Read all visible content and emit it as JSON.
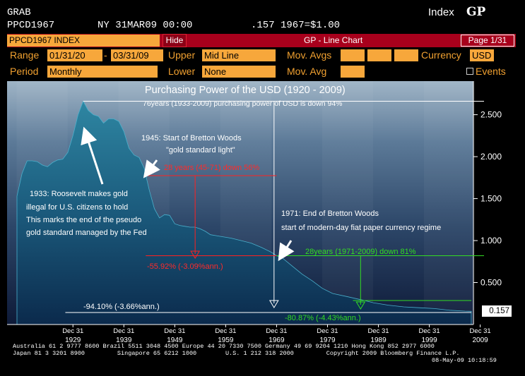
{
  "header": {
    "left1": "GRAB",
    "left2": "PPCD1967",
    "date": "NY 31MAR09 00:00",
    "value": ".157 1967=$1.00",
    "index_label": "Index",
    "index_code": "GP"
  },
  "toolbar": {
    "ticker": "PPCD1967 INDEX",
    "hide_label": "Hide",
    "title": "GP - Line Chart",
    "page": "Page 1/31"
  },
  "params": {
    "range_label": "Range",
    "range_from": "01/31/20",
    "range_sep": "-",
    "range_to": "03/31/09",
    "upper_label": "Upper",
    "upper_value": "Mid Line",
    "mov_avgs_label": "Mov. Avgs",
    "currency_label": "Currency",
    "currency_value": "USD",
    "period_label": "Period",
    "period_value": "Monthly",
    "lower_label": "Lower",
    "lower_value": "None",
    "mov_avg_label": "Mov. Avg",
    "events_label": "Events"
  },
  "chart_data": {
    "type": "area",
    "title": "Purchasing Power of the USD (1920 - 2009)",
    "subtitle": "76years (1933-2009) purchasing power of USD is down 94%",
    "last_value": "0.157",
    "y_ticks": [
      "2.500",
      "2.000",
      "1.500",
      "1.000",
      "0.500"
    ],
    "x_ticks_top": [
      "Dec 31",
      "Dec 31",
      "Dec 31",
      "Dec 31",
      "Dec 31",
      "Dec 31",
      "Dec 31",
      "Dec 31",
      "Dec 31"
    ],
    "x_ticks_bottom": [
      "1929",
      "1939",
      "1949",
      "1959",
      "1969",
      "1979",
      "1989",
      "1999",
      "2009"
    ],
    "ylim": [
      0,
      2.9
    ],
    "xlim": [
      1920.0,
      2009.25
    ],
    "x": [
      1920.0,
      1921,
      1922,
      1923,
      1924,
      1925,
      1926,
      1927,
      1928,
      1929,
      1930,
      1931,
      1932,
      1933,
      1934,
      1935,
      1936,
      1937,
      1938,
      1939,
      1940,
      1941,
      1942,
      1943,
      1944,
      1945,
      1946,
      1947,
      1948,
      1949,
      1950,
      1951,
      1952,
      1953,
      1954,
      1955,
      1956,
      1957,
      1958,
      1959,
      1960,
      1962,
      1964,
      1966,
      1968,
      1970,
      1971,
      1972,
      1974,
      1976,
      1978,
      1980,
      1982,
      1985,
      1988,
      1990,
      1993,
      1996,
      1999,
      2002,
      2005,
      2008,
      2009.25
    ],
    "y": [
      1.53,
      1.8,
      1.95,
      1.95,
      1.94,
      1.9,
      1.88,
      1.93,
      1.96,
      1.97,
      2.05,
      2.25,
      2.5,
      2.66,
      2.55,
      2.5,
      2.48,
      2.4,
      2.45,
      2.45,
      2.42,
      2.3,
      2.1,
      2.02,
      1.99,
      1.86,
      1.6,
      1.38,
      1.27,
      1.31,
      1.3,
      1.2,
      1.18,
      1.17,
      1.16,
      1.16,
      1.14,
      1.11,
      1.07,
      1.06,
      1.05,
      1.03,
      1.0,
      0.97,
      0.92,
      0.86,
      0.82,
      0.8,
      0.7,
      0.6,
      0.52,
      0.43,
      0.37,
      0.33,
      0.29,
      0.26,
      0.23,
      0.21,
      0.2,
      0.19,
      0.17,
      0.16,
      0.157
    ],
    "annotations": {
      "bretton_woods_1945": [
        "1945: Start of Bretton Woods",
        "\"gold standard light\""
      ],
      "range_45_71": "28 years (45-71) down 56%",
      "range_45_71_result": "-55.92% (-3.09%ann.)",
      "roosevelt_1933": [
        "1933: Roosevelt makes gold",
        "illegal for U.S. citizens to hold",
        "This marks the end of the pseudo",
        "gold standard managed by the Fed"
      ],
      "end_bretton_woods_1971": [
        "1971: End of Bretton Woods",
        "start of modern-day fiat paper currency regime"
      ],
      "range_71_09": "28years (1971-2009) down 81%",
      "range_71_09_result": "-80.87% (-4.43%ann.)",
      "total_result": "-94.10% (-3.66%ann.)"
    },
    "colors": {
      "red": "#ff2020",
      "green": "#33dd22",
      "area_top": "#2c7a96",
      "area_bottom": "#0c2a48"
    }
  },
  "footer": {
    "line1": "Australia 61 2 9777 8600 Brazil 5511 3048 4500 Europe 44 20 7330 7500 Germany 49 69 9204 1210 Hong Kong 852 2977 6000",
    "line2": "Japan 81 3 3201 8900         Singapore 65 6212 1000        U.S. 1 212 318 2000         Copyright 2009 Bloomberg Finance L.P.",
    "line3": "08-May-09 10:18:59"
  }
}
